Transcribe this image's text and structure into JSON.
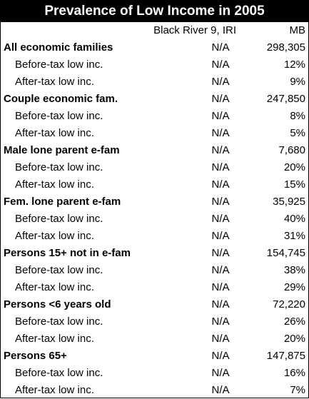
{
  "table": {
    "title": "Prevalence of Low Income in 2005",
    "header": [
      "Black River 9, IRI",
      "MB"
    ],
    "groups": [
      {
        "label": "All economic families",
        "values": [
          "N/A",
          "298,305"
        ],
        "rows": [
          [
            "Before-tax low inc.",
            "N/A",
            "12%"
          ],
          [
            "After-tax low inc.",
            "N/A",
            "9%"
          ]
        ]
      },
      {
        "label": "Couple economic fam.",
        "values": [
          "N/A",
          "247,850"
        ],
        "rows": [
          [
            "Before-tax low inc.",
            "N/A",
            "8%"
          ],
          [
            "After-tax low inc.",
            "N/A",
            "5%"
          ]
        ]
      },
      {
        "label": "Male lone parent e-fam",
        "values": [
          "N/A",
          "7,680"
        ],
        "rows": [
          [
            "Before-tax low inc.",
            "N/A",
            "20%"
          ],
          [
            "After-tax low inc.",
            "N/A",
            "15%"
          ]
        ]
      },
      {
        "label": "Fem. lone parent e-fam",
        "values": [
          "N/A",
          "35,925"
        ],
        "rows": [
          [
            "Before-tax low inc.",
            "N/A",
            "40%"
          ],
          [
            "After-tax low inc.",
            "N/A",
            "31%"
          ]
        ]
      },
      {
        "label": "Persons 15+ not in e-fam",
        "values": [
          "N/A",
          "154,745"
        ],
        "rows": [
          [
            "Before-tax low inc.",
            "N/A",
            "38%"
          ],
          [
            "After-tax low inc.",
            "N/A",
            "29%"
          ]
        ]
      },
      {
        "label": "Persons <6 years old",
        "values": [
          "N/A",
          "72,220"
        ],
        "rows": [
          [
            "Before-tax low inc.",
            "N/A",
            "26%"
          ],
          [
            "After-tax low inc.",
            "N/A",
            "20%"
          ]
        ]
      },
      {
        "label": "Persons 65+",
        "values": [
          "N/A",
          "147,875"
        ],
        "rows": [
          [
            "Before-tax low inc.",
            "N/A",
            "16%"
          ],
          [
            "After-tax low inc.",
            "N/A",
            "7%"
          ]
        ]
      }
    ]
  }
}
